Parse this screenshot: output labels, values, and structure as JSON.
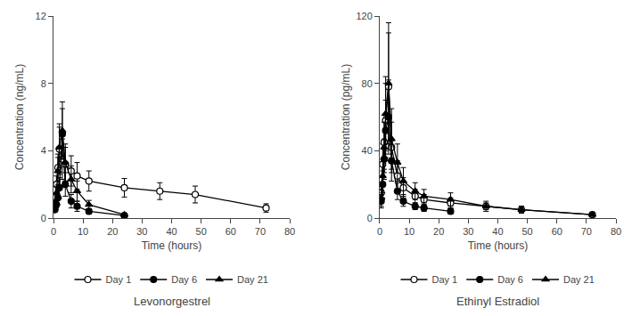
{
  "chart_data": [
    {
      "type": "line",
      "title": "Levonorgestrel",
      "xlabel": "Time (hours)",
      "ylabel": "Concentration (ng/mL)",
      "xlim": [
        0,
        80
      ],
      "xticks": [
        0,
        10,
        20,
        30,
        40,
        50,
        60,
        70,
        80
      ],
      "ylim": [
        0,
        12
      ],
      "yticks": [
        0,
        4,
        8,
        12
      ],
      "grid": false,
      "legend": "bottom",
      "series": [
        {
          "name": "Day 1",
          "color": "black",
          "marker": "circle-open",
          "line_style": "solid",
          "x": [
            0.5,
            1.0,
            1.5,
            2.0,
            3.0,
            4.0,
            6.0,
            8.0,
            12.0,
            24.0,
            36.0,
            48.0,
            72.0
          ],
          "values": [
            1.2,
            2.0,
            3.0,
            4.1,
            3.5,
            3.2,
            2.8,
            2.5,
            2.2,
            1.8,
            1.6,
            1.4,
            0.6
          ],
          "errors": [
            0.3,
            0.5,
            0.8,
            1.5,
            1.2,
            1.0,
            0.9,
            0.8,
            0.6,
            0.55,
            0.5,
            0.5,
            0.25
          ]
        },
        {
          "name": "Day 6",
          "color": "black",
          "marker": "circle",
          "line_style": "solid",
          "x": [
            0.5,
            1.0,
            1.5,
            2.0,
            3.0,
            4.0,
            6.0,
            8.0,
            12.0,
            24.0
          ],
          "values": [
            0.5,
            0.8,
            1.2,
            1.8,
            5.0,
            2.0,
            1.0,
            0.7,
            0.4,
            0.15
          ],
          "errors": [
            0.1,
            0.2,
            0.4,
            0.6,
            1.5,
            0.7,
            0.4,
            0.3,
            0.15,
            0.05
          ]
        },
        {
          "name": "Day 21",
          "color": "black",
          "marker": "triangle-up",
          "line_style": "solid",
          "x": [
            0.5,
            1.0,
            1.5,
            2.0,
            3.0,
            4.0,
            6.0,
            8.0,
            12.0,
            24.0
          ],
          "values": [
            0.9,
            1.5,
            2.8,
            4.2,
            5.2,
            3.3,
            2.3,
            1.6,
            0.8,
            0.2
          ],
          "errors": [
            0.2,
            0.4,
            0.8,
            1.2,
            1.7,
            1.1,
            0.8,
            0.6,
            0.25,
            0.05
          ]
        }
      ]
    },
    {
      "type": "line",
      "title": "Ethinyl Estradiol",
      "xlabel": "Time (hours)",
      "ylabel": "Concentration (pg/mL)",
      "xlim": [
        0,
        80
      ],
      "xticks": [
        0,
        10,
        20,
        30,
        40,
        50,
        60,
        70,
        80
      ],
      "ylim": [
        0,
        120
      ],
      "yticks": [
        0,
        40,
        80,
        120
      ],
      "grid": false,
      "legend": "bottom",
      "series": [
        {
          "name": "Day 1",
          "color": "black",
          "marker": "circle-open",
          "line_style": "solid",
          "x": [
            0.5,
            1.0,
            1.5,
            2.0,
            3.0,
            4.0,
            6.0,
            8.0,
            12.0,
            15.0,
            24.0,
            36.0,
            48.0,
            72.0
          ],
          "values": [
            15,
            32,
            45,
            58,
            78,
            42,
            25,
            18,
            13,
            11,
            9,
            7,
            5,
            2
          ],
          "errors": [
            5,
            12,
            16,
            22,
            32,
            15,
            9,
            6,
            4,
            3,
            3,
            2,
            2,
            1
          ]
        },
        {
          "name": "Day 6",
          "color": "black",
          "marker": "circle",
          "line_style": "solid",
          "x": [
            0.5,
            1.0,
            1.5,
            2.0,
            3.0,
            4.0,
            6.0,
            8.0,
            12.0,
            15.0,
            24.0
          ],
          "values": [
            10,
            20,
            35,
            52,
            60,
            34,
            16,
            10,
            7,
            6,
            4
          ],
          "errors": [
            4,
            8,
            12,
            18,
            22,
            12,
            5,
            3,
            2,
            2,
            1.5
          ]
        },
        {
          "name": "Day 21",
          "color": "black",
          "marker": "triangle-up",
          "line_style": "solid",
          "x": [
            0.5,
            1.0,
            1.5,
            2.0,
            3.0,
            4.0,
            6.0,
            8.0,
            12.0,
            15.0,
            24.0,
            36.0,
            48.0,
            72.0
          ],
          "values": [
            12,
            25,
            42,
            62,
            80,
            47,
            33,
            22,
            16,
            13,
            11,
            7,
            5,
            2
          ],
          "errors": [
            5,
            10,
            15,
            22,
            36,
            18,
            11,
            8,
            5,
            4,
            4,
            3,
            2,
            1
          ]
        }
      ]
    }
  ]
}
